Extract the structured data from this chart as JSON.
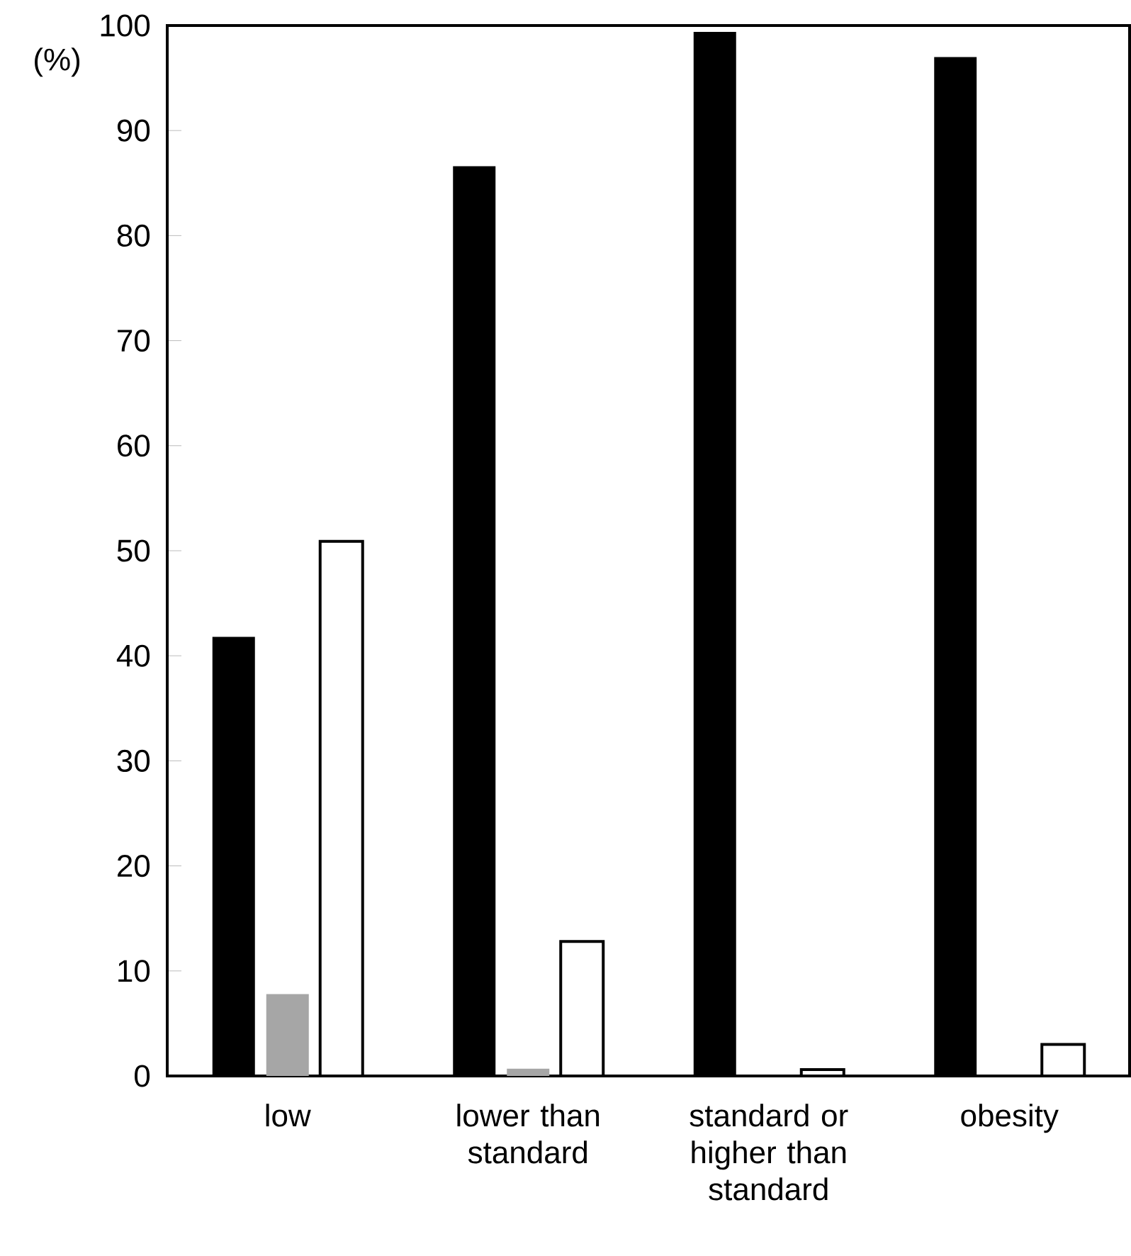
{
  "chart_data": {
    "type": "bar",
    "ylabel": "(%)",
    "categories": [
      "low",
      "lower than standard",
      "standard or higher than standard",
      "obesity"
    ],
    "series": [
      {
        "color": "#000000",
        "values": [
          41.8,
          86.6,
          99.4,
          97.0
        ]
      },
      {
        "color": "#a6a6a6",
        "values": [
          7.8,
          0.7,
          null,
          null
        ]
      },
      {
        "color": "#ffffff",
        "values": [
          50.9,
          12.8,
          0.6,
          3.0
        ]
      }
    ],
    "ylim": [
      0,
      100
    ],
    "yticks": [
      0,
      10,
      20,
      30,
      40,
      50,
      60,
      70,
      80,
      90,
      100
    ]
  }
}
